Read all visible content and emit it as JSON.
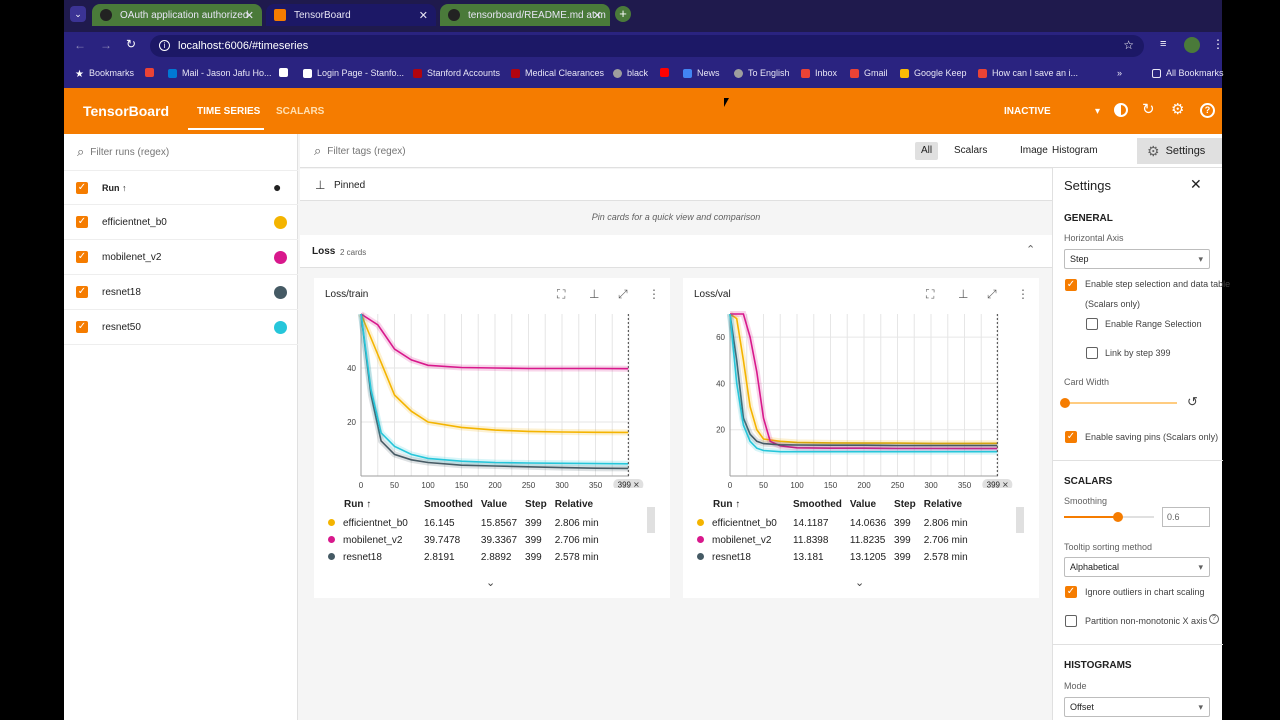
{
  "browser": {
    "tabs": [
      {
        "title": "OAuth application authorized"
      },
      {
        "title": "TensorBoard"
      },
      {
        "title": "tensorboard/README.md at m"
      }
    ],
    "url": "localhost:6006/#timeseries",
    "bookmarks": [
      "Bookmarks",
      "Mail - Jason Jafu Ho...",
      "Login Page - Stanfo...",
      "Stanford Accounts",
      "Medical Clearances",
      "black",
      "News",
      "To English",
      "Inbox",
      "Gmail",
      "Google Keep",
      "How can I save an i...",
      "All Bookmarks"
    ]
  },
  "header": {
    "brand": "TensorBoard",
    "nav": [
      "TIME SERIES",
      "SCALARS"
    ],
    "status": "INACTIVE",
    "accent": "#f57c00"
  },
  "runs": {
    "filter_placeholder": "Filter runs (regex)",
    "header": "Run ↑",
    "items": [
      {
        "name": "efficientnet_b0",
        "color": "#f4b400"
      },
      {
        "name": "mobilenet_v2",
        "color": "#d8188c"
      },
      {
        "name": "resnet18",
        "color": "#455a64"
      },
      {
        "name": "resnet50",
        "color": "#26c6da"
      }
    ]
  },
  "filter": {
    "placeholder": "Filter tags (regex)",
    "types": [
      "All",
      "Scalars",
      "Image",
      "Histogram"
    ],
    "settings_label": "Settings"
  },
  "pinned": {
    "title": "Pinned",
    "empty": "Pin cards for a quick view and comparison"
  },
  "group": {
    "title": "Loss",
    "count": "2 cards"
  },
  "cards": [
    {
      "title": "Loss/train",
      "step_marker": "399",
      "table": {
        "headers": [
          "Run ↑",
          "Smoothed",
          "Value",
          "Step",
          "Relative"
        ],
        "rows": [
          [
            "efficientnet_b0",
            "16.145",
            "15.8567",
            "399",
            "2.806 min"
          ],
          [
            "mobilenet_v2",
            "39.7478",
            "39.3367",
            "399",
            "2.706 min"
          ],
          [
            "resnet18",
            "2.8191",
            "2.8892",
            "399",
            "2.578 min"
          ]
        ]
      }
    },
    {
      "title": "Loss/val",
      "step_marker": "399",
      "table": {
        "headers": [
          "Run ↑",
          "Smoothed",
          "Value",
          "Step",
          "Relative"
        ],
        "rows": [
          [
            "efficientnet_b0",
            "14.1187",
            "14.0636",
            "399",
            "2.806 min"
          ],
          [
            "mobilenet_v2",
            "11.8398",
            "11.8235",
            "399",
            "2.706 min"
          ],
          [
            "resnet18",
            "13.181",
            "13.1205",
            "399",
            "2.578 min"
          ]
        ]
      }
    }
  ],
  "chart_data": [
    {
      "type": "line",
      "title": "Loss/train",
      "xlim": [
        0,
        400
      ],
      "ylim": [
        0,
        60
      ],
      "x_ticks": [
        "0",
        "50",
        "100",
        "150",
        "200",
        "250",
        "300",
        "350"
      ],
      "y_ticks": [
        "20",
        "40"
      ],
      "series": [
        {
          "name": "efficientnet_b0",
          "x": [
            0,
            25,
            50,
            75,
            100,
            150,
            200,
            250,
            300,
            350,
            399
          ],
          "y": [
            60,
            45,
            30,
            24,
            20,
            18,
            17,
            16.5,
            16.3,
            16.2,
            16.145
          ]
        },
        {
          "name": "mobilenet_v2",
          "x": [
            0,
            25,
            50,
            75,
            100,
            150,
            200,
            250,
            300,
            350,
            399
          ],
          "y": [
            60,
            56,
            47,
            43,
            41,
            40.2,
            40,
            39.8,
            39.8,
            39.8,
            39.75
          ]
        },
        {
          "name": "resnet18",
          "x": [
            0,
            15,
            30,
            50,
            75,
            100,
            150,
            200,
            250,
            300,
            350,
            399
          ],
          "y": [
            60,
            30,
            13,
            8,
            6,
            5,
            4,
            3.7,
            3.4,
            3.1,
            2.9,
            2.82
          ]
        },
        {
          "name": "resnet50",
          "x": [
            0,
            15,
            30,
            50,
            75,
            100,
            150,
            200,
            250,
            300,
            350,
            399
          ],
          "y": [
            60,
            32,
            16,
            11,
            8,
            6.5,
            5.5,
            5,
            4.8,
            4.7,
            4.6,
            4.5
          ]
        }
      ]
    },
    {
      "type": "line",
      "title": "Loss/val",
      "xlim": [
        0,
        400
      ],
      "ylim": [
        0,
        70
      ],
      "x_ticks": [
        "0",
        "50",
        "100",
        "150",
        "200",
        "250",
        "300",
        "350"
      ],
      "y_ticks": [
        "20",
        "40",
        "60"
      ],
      "series": [
        {
          "name": "efficientnet_b0",
          "x": [
            0,
            10,
            20,
            30,
            40,
            50,
            75,
            100,
            150,
            200,
            250,
            300,
            350,
            399
          ],
          "y": [
            70,
            68,
            50,
            30,
            20,
            16,
            15,
            14.5,
            14.3,
            14.2,
            14.2,
            14.1,
            14.1,
            14.12
          ]
        },
        {
          "name": "mobilenet_v2",
          "x": [
            0,
            20,
            30,
            40,
            50,
            60,
            75,
            100,
            150,
            200,
            250,
            300,
            350,
            399
          ],
          "y": [
            70,
            70,
            60,
            45,
            25,
            15,
            13,
            12.2,
            12,
            12,
            11.9,
            11.9,
            11.85,
            11.84
          ]
        },
        {
          "name": "resnet18",
          "x": [
            0,
            10,
            20,
            30,
            40,
            50,
            75,
            100,
            150,
            200,
            250,
            300,
            350,
            399
          ],
          "y": [
            70,
            50,
            25,
            18,
            15,
            14,
            13.5,
            13.4,
            13.3,
            13.3,
            13.2,
            13.2,
            13.2,
            13.18
          ]
        },
        {
          "name": "resnet50",
          "x": [
            0,
            10,
            20,
            30,
            40,
            50,
            75,
            100,
            150,
            200,
            250,
            300,
            350,
            399
          ],
          "y": [
            70,
            40,
            22,
            15,
            12,
            11,
            10.5,
            10.5,
            10.5,
            10.5,
            10.5,
            10.5,
            10.5,
            10.5
          ]
        }
      ]
    }
  ],
  "settings": {
    "title": "Settings",
    "general": "GENERAL",
    "horizontal_axis_label": "Horizontal Axis",
    "horizontal_axis_value": "Step",
    "enable_step_selection": "Enable step selection and data table",
    "scalars_only": "(Scalars only)",
    "enable_range": "Enable Range Selection",
    "link_by_step": "Link by step 399",
    "card_width": "Card Width",
    "saving_pins": "Enable saving pins (Scalars only)",
    "scalars": "SCALARS",
    "smoothing_label": "Smoothing",
    "smoothing_value": "0.6",
    "smoothing": 0.6,
    "tooltip_label": "Tooltip sorting method",
    "tooltip_value": "Alphabetical",
    "ignore_outliers": "Ignore outliers in chart scaling",
    "partition": "Partition non-monotonic X axis",
    "histograms": "HISTOGRAMS",
    "mode_label": "Mode",
    "mode_value": "Offset"
  }
}
